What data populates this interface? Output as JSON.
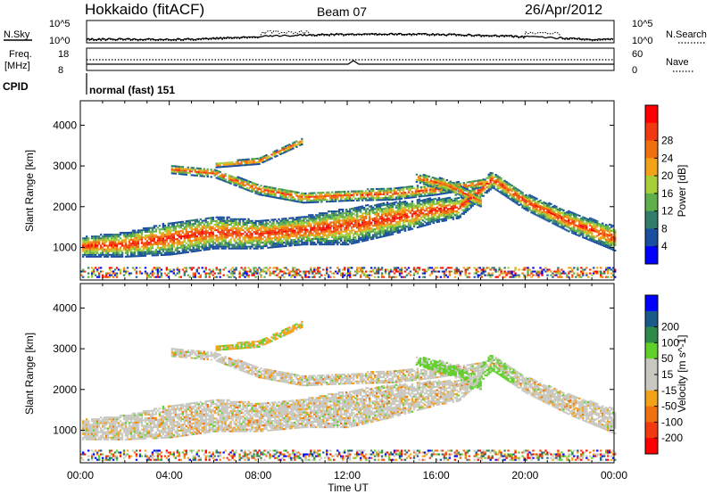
{
  "header": {
    "station": "Hokkaido (fitACF)",
    "beam": "Beam 07",
    "date": "26/Apr/2012"
  },
  "top_panels": {
    "noise": {
      "left_label": "N.Sky",
      "right_label": "N.Search",
      "left_ticks": [
        "10^5",
        "10^0"
      ],
      "right_ticks": [
        "10^5",
        "10^0"
      ]
    },
    "freq": {
      "left_label_1": "Freq.",
      "left_label_2": "[MHz]",
      "left_ticks": [
        "18",
        "8"
      ],
      "right_label": "Nave",
      "right_ticks": [
        "60",
        "0"
      ]
    },
    "cpid": {
      "label": "CPID",
      "program": "normal (fast) 151"
    }
  },
  "colors": {
    "power_scale": [
      "#0000ff",
      "#1a4fa0",
      "#2f7d6a",
      "#5fb04a",
      "#a8cf3a",
      "#f2a218",
      "#f07010",
      "#f23a10",
      "#ff0000"
    ],
    "velocity_scale": [
      "#ff0000",
      "#f23a10",
      "#f07010",
      "#f2a218",
      "#c8c8c0",
      "#c8c8c0",
      "#5fd02a",
      "#2f8a4a",
      "#1a5a8a",
      "#0000ff"
    ]
  },
  "chart_data": [
    {
      "type": "heatmap",
      "title": "Power",
      "xlabel": "",
      "ylabel": "Slant Range [km]",
      "x_ticks": [
        "00:00",
        "04:00",
        "08:00",
        "12:00",
        "16:00",
        "20:00",
        "00:00"
      ],
      "y_ticks": [
        "1000",
        "2000",
        "3000",
        "4000"
      ],
      "ylim": [
        200,
        4600
      ],
      "colorbar": {
        "label": "Power [dB]",
        "ticks": [
          "4",
          "8",
          "12",
          "16",
          "20",
          "24",
          "28"
        ]
      },
      "bands": [
        {
          "x": [
            0,
            2,
            4,
            6,
            8,
            10,
            11,
            12,
            14,
            16,
            17,
            18.5,
            20,
            22,
            24
          ],
          "y_center_km": [
            1000,
            1050,
            1200,
            1350,
            1300,
            1400,
            1450,
            1500,
            1700,
            1900,
            1950,
            2650,
            2100,
            1600,
            1200
          ],
          "thickness_km": [
            500,
            600,
            800,
            800,
            700,
            700,
            800,
            900,
            800,
            600,
            500,
            400,
            400,
            500,
            600
          ]
        },
        {
          "x": [
            4,
            6,
            8,
            10,
            12,
            14,
            16,
            18
          ],
          "y_center_km": [
            2900,
            2800,
            2400,
            2200,
            2250,
            2300,
            2400,
            2550
          ],
          "thickness_km": [
            200,
            200,
            250,
            250,
            250,
            300,
            250,
            200
          ]
        },
        {
          "x": [
            6,
            8,
            9,
            10
          ],
          "y_center_km": [
            3000,
            3100,
            3350,
            3600
          ],
          "thickness_km": [
            120,
            150,
            150,
            150
          ]
        },
        {
          "x": [
            15,
            16.5,
            18
          ],
          "y_center_km": [
            2700,
            2500,
            2100
          ],
          "thickness_km": [
            200,
            300,
            250
          ]
        }
      ]
    },
    {
      "type": "heatmap",
      "title": "Velocity",
      "xlabel": "Time UT",
      "ylabel": "Slant Range [km]",
      "x_ticks": [
        "00:00",
        "04:00",
        "08:00",
        "12:00",
        "16:00",
        "20:00",
        "00:00"
      ],
      "y_ticks": [
        "1000",
        "2000",
        "3000",
        "4000"
      ],
      "ylim": [
        200,
        4600
      ],
      "colorbar": {
        "label": "Velocity [m s^-1]",
        "ticks": [
          "200",
          "100",
          "50",
          "15",
          "-15",
          "-50",
          "-100",
          "-200"
        ]
      }
    }
  ]
}
